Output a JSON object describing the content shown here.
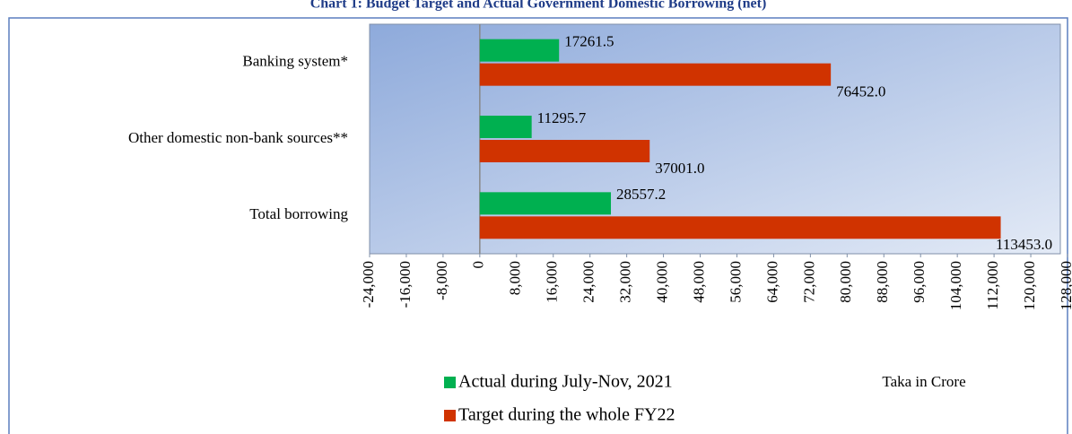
{
  "chart_data": {
    "type": "bar",
    "orientation": "horizontal",
    "title": "Chart 1: Budget Target and Actual Government Domestic Borrowing (net)",
    "annotation": "Taka in Crore",
    "categories": [
      "Banking system*",
      "Other domestic non-bank sources**",
      "Total borrowing"
    ],
    "series": [
      {
        "name": "Actual during July-Nov, 2021",
        "color": "#00b050",
        "values": [
          17261.5,
          11295.7,
          28557.2
        ],
        "value_labels": [
          "17261.5",
          "11295.7",
          "28557.2"
        ]
      },
      {
        "name": "Target during the whole FY22",
        "color": "#d03300",
        "values": [
          76452,
          37001,
          113453
        ],
        "value_labels": [
          "76452.0",
          "37001.0",
          "113453.0"
        ]
      }
    ],
    "xlim": [
      -24000,
      128000
    ],
    "xticks": [
      {
        "value": -24000,
        "label": "-24,000"
      },
      {
        "value": -16000,
        "label": "-16,000"
      },
      {
        "value": -8000,
        "label": "-8,000"
      },
      0,
      {
        "value": 8000,
        "label": "8,000"
      },
      {
        "value": 16000,
        "label": "16,000"
      },
      {
        "value": 24000,
        "label": "24,000"
      },
      {
        "value": 32000,
        "label": "32,000"
      },
      {
        "value": 40000,
        "label": "40,000"
      },
      {
        "value": 48000,
        "label": "48,000"
      },
      {
        "value": 56000,
        "label": "56,000"
      },
      {
        "value": 64000,
        "label": "64,000"
      },
      {
        "value": 72000,
        "label": "72,000"
      },
      {
        "value": 80000,
        "label": "80,000"
      },
      {
        "value": 88000,
        "label": "88,000"
      },
      {
        "value": 96000,
        "label": "96,000"
      },
      {
        "value": 104000,
        "label": "104,000"
      },
      {
        "value": 112000,
        "label": "112,000"
      },
      {
        "value": 120000,
        "label": "120,000"
      },
      {
        "value": 128000,
        "label": "128,000"
      }
    ],
    "legend": "bottom"
  }
}
